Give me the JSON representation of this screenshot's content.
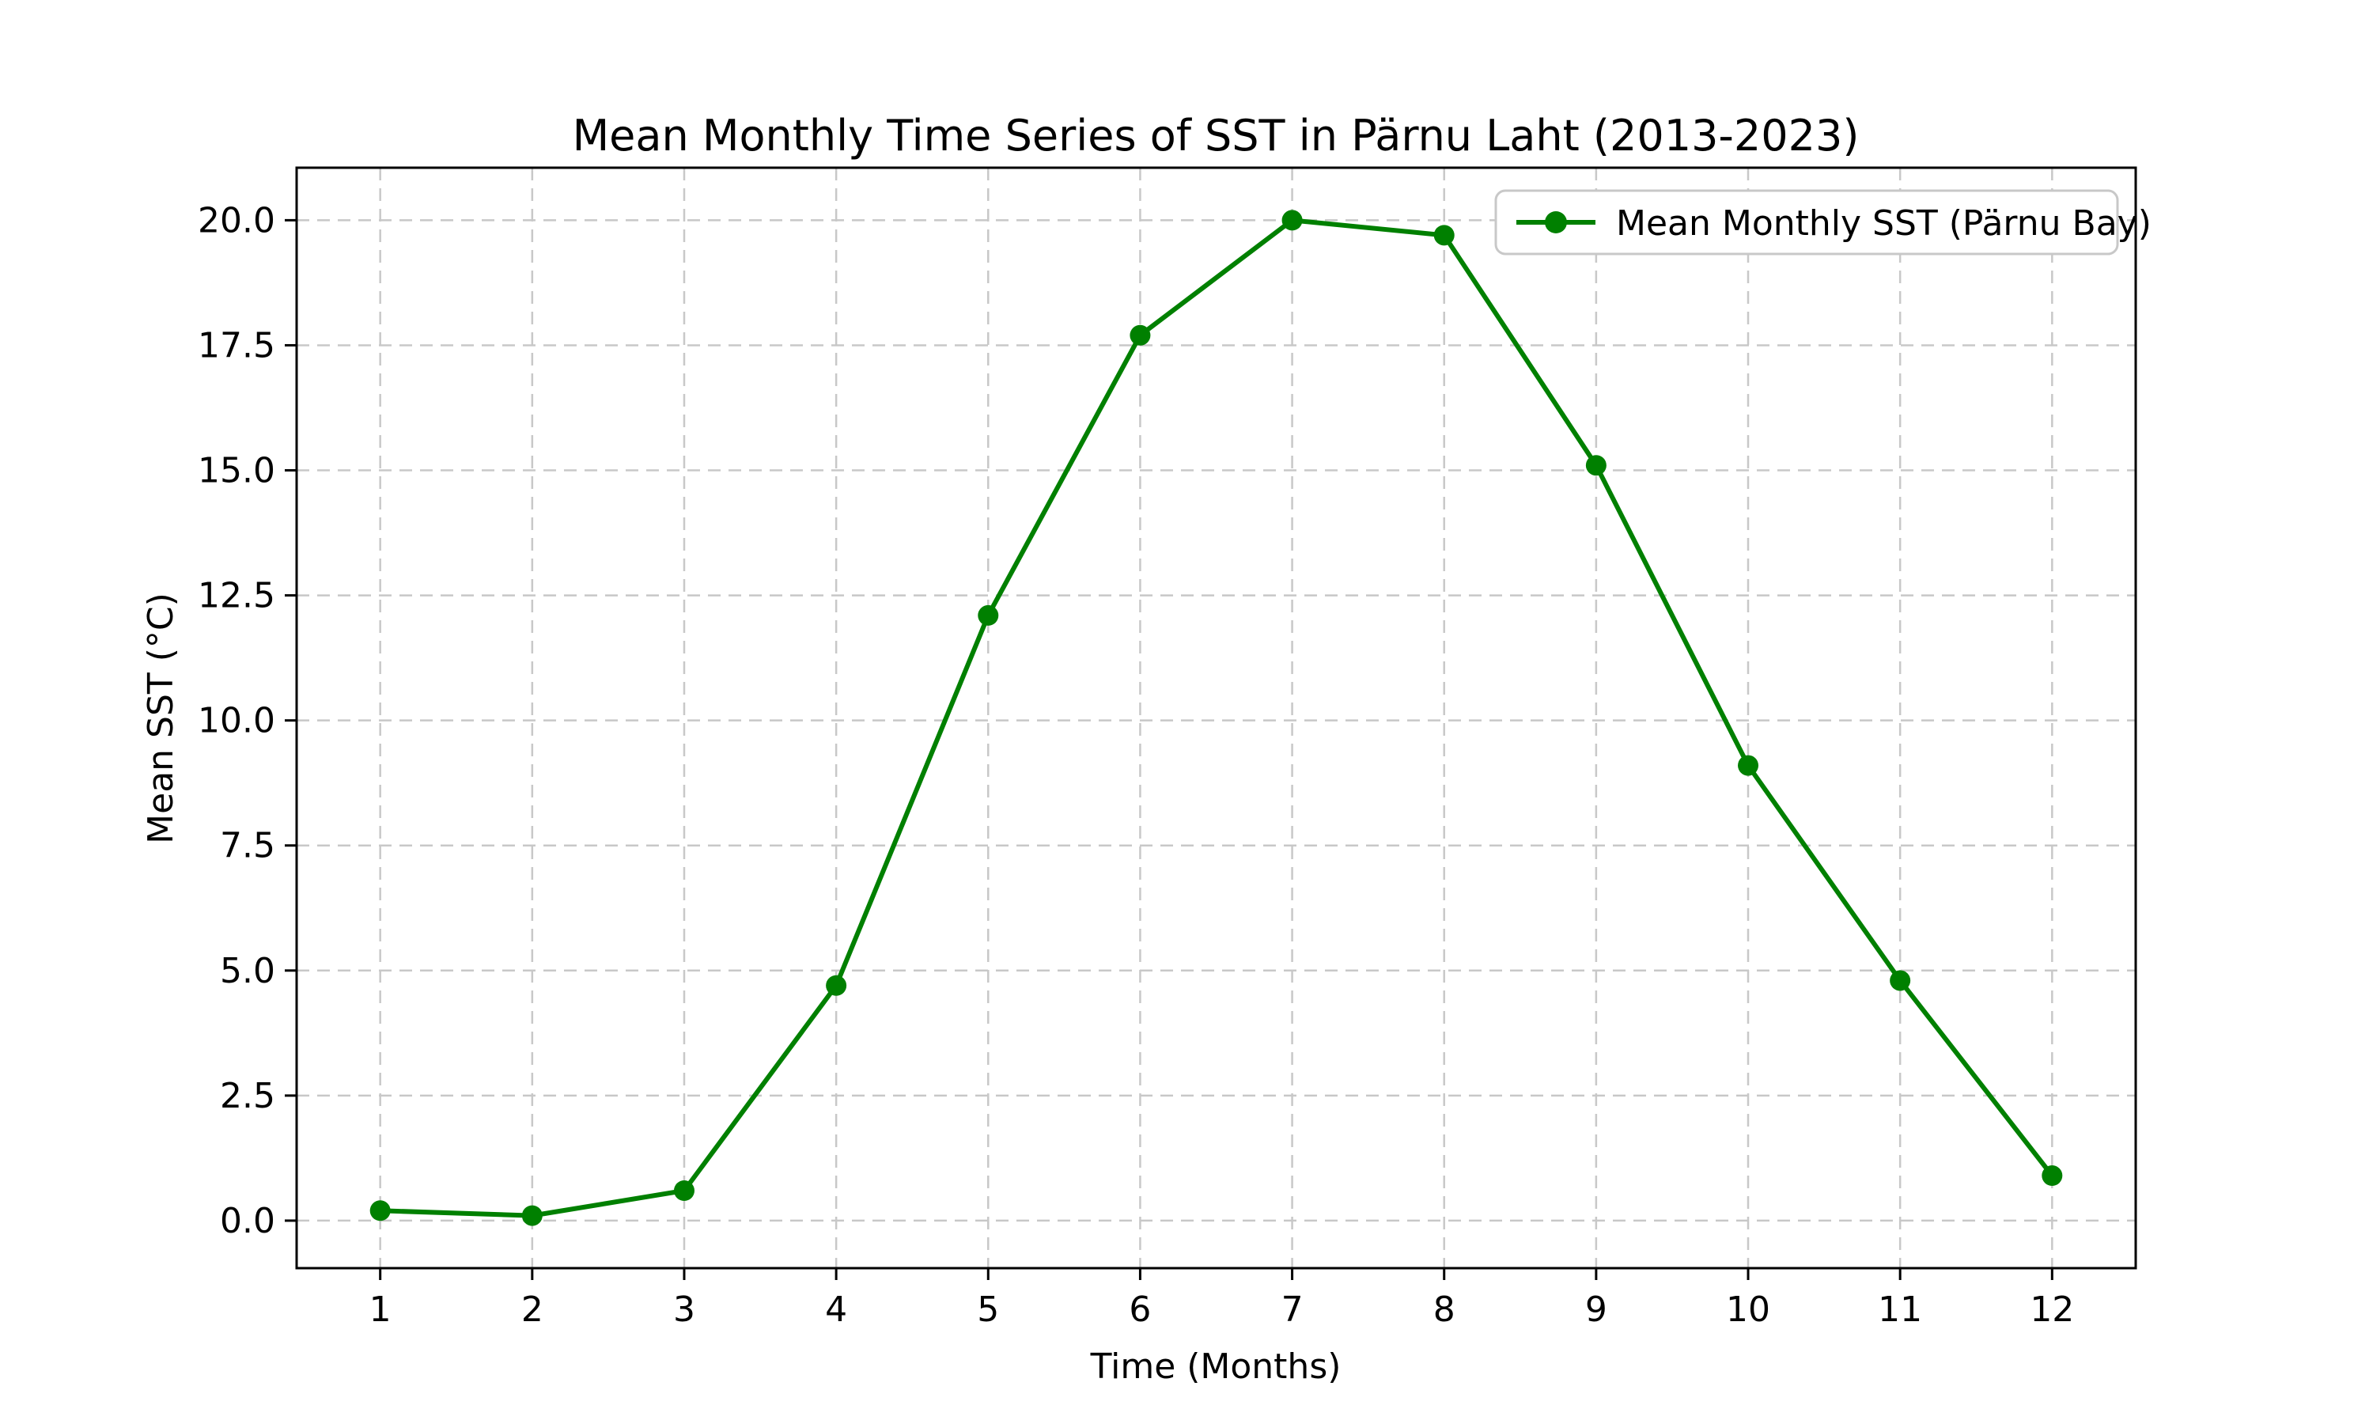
{
  "figure": {
    "background": "#ffffff"
  },
  "chart_data": {
    "type": "line",
    "title": "Mean Monthly Time Series of SST in Pärnu Laht (2013-2023)",
    "xlabel": "Time (Months)",
    "ylabel": "Mean SST (°C)",
    "x": [
      1,
      2,
      3,
      4,
      5,
      6,
      7,
      8,
      9,
      10,
      11,
      12
    ],
    "series": [
      {
        "name": "Mean Monthly SST (Pärnu Bay)",
        "values": [
          0.2,
          0.1,
          0.6,
          4.7,
          12.1,
          17.7,
          20.0,
          19.7,
          15.1,
          9.1,
          4.8,
          0.9
        ],
        "color": "#008000",
        "marker": "circle",
        "line_width": 6,
        "marker_radius": 13
      }
    ],
    "xticks": [
      1,
      2,
      3,
      4,
      5,
      6,
      7,
      8,
      9,
      10,
      11,
      12
    ],
    "xtick_labels": [
      "1",
      "2",
      "3",
      "4",
      "5",
      "6",
      "7",
      "8",
      "9",
      "10",
      "11",
      "12"
    ],
    "yticks": [
      0,
      2.5,
      5,
      7.5,
      10,
      12.5,
      15,
      17.5,
      20
    ],
    "ytick_labels": [
      "0.0",
      "2.5",
      "5.0",
      "7.5",
      "10.0",
      "12.5",
      "15.0",
      "17.5",
      "20.0"
    ],
    "xlim": [
      0.45,
      12.55
    ],
    "ylim": [
      -0.95,
      21.05
    ],
    "grid": true,
    "grid_style": "dashed",
    "grid_color": "#c8c8c8",
    "axis_color": "#000000",
    "legend": {
      "position": "upper right",
      "border_color": "#c8c8c8",
      "background": "#ffffff"
    }
  }
}
